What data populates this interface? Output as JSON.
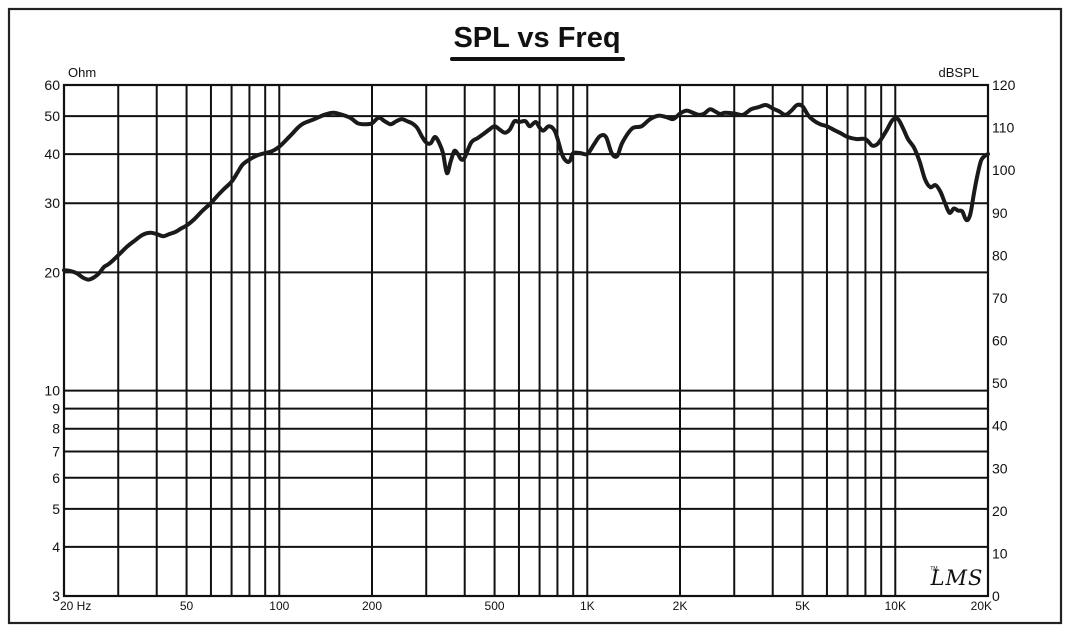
{
  "chart_data": {
    "type": "line",
    "title": "SPL vs Freq",
    "watermark": "LMS",
    "x_axis": {
      "scale": "log",
      "range": [
        20,
        20000
      ],
      "tick_labels": [
        {
          "value": 20,
          "label": "20 Hz"
        },
        {
          "value": 50,
          "label": "50"
        },
        {
          "value": 100,
          "label": "100"
        },
        {
          "value": 200,
          "label": "200"
        },
        {
          "value": 500,
          "label": "500"
        },
        {
          "value": 1000,
          "label": "1K"
        },
        {
          "value": 2000,
          "label": "2K"
        },
        {
          "value": 5000,
          "label": "5K"
        },
        {
          "value": 10000,
          "label": "10K"
        },
        {
          "value": 20000,
          "label": "20K"
        }
      ]
    },
    "y_left": {
      "label": "Ohm",
      "scale": "log",
      "range": [
        3,
        60
      ],
      "tick_labels": [
        {
          "value": 60,
          "label": "60"
        },
        {
          "value": 50,
          "label": "50"
        },
        {
          "value": 40,
          "label": "40"
        },
        {
          "value": 30,
          "label": "30"
        },
        {
          "value": 20,
          "label": "20"
        },
        {
          "value": 10,
          "label": "10"
        },
        {
          "value": 9,
          "label": "9"
        },
        {
          "value": 8,
          "label": "8"
        },
        {
          "value": 7,
          "label": "7"
        },
        {
          "value": 6,
          "label": "6"
        },
        {
          "value": 5,
          "label": "5"
        },
        {
          "value": 4,
          "label": "4"
        },
        {
          "value": 3,
          "label": "3"
        }
      ]
    },
    "y_right": {
      "label": "dBSPL",
      "scale": "linear",
      "range": [
        0,
        120
      ],
      "tick_labels": [
        {
          "value": 120,
          "label": "120"
        },
        {
          "value": 110,
          "label": "110"
        },
        {
          "value": 100,
          "label": "100"
        },
        {
          "value": 90,
          "label": "90"
        },
        {
          "value": 80,
          "label": "80"
        },
        {
          "value": 70,
          "label": "70"
        },
        {
          "value": 60,
          "label": "60"
        },
        {
          "value": 50,
          "label": "50"
        },
        {
          "value": 40,
          "label": "40"
        },
        {
          "value": 30,
          "label": "30"
        },
        {
          "value": 20,
          "label": "20"
        },
        {
          "value": 10,
          "label": "10"
        },
        {
          "value": 0,
          "label": "0"
        }
      ]
    },
    "grid": true,
    "series": [
      {
        "axis": "right",
        "color": "#1a1a1a",
        "points": [
          [
            20,
            76.5
          ],
          [
            21,
            76.3
          ],
          [
            22,
            75.8
          ],
          [
            23,
            74.8
          ],
          [
            24,
            74.3
          ],
          [
            25,
            74.8
          ],
          [
            26,
            75.8
          ],
          [
            27,
            77.3
          ],
          [
            28,
            78.0
          ],
          [
            30,
            80.0
          ],
          [
            32,
            82.0
          ],
          [
            34,
            83.5
          ],
          [
            36,
            84.8
          ],
          [
            38,
            85.3
          ],
          [
            40,
            85.0
          ],
          [
            42,
            84.5
          ],
          [
            44,
            85.0
          ],
          [
            46,
            85.5
          ],
          [
            48,
            86.3
          ],
          [
            50,
            87.0
          ],
          [
            53,
            88.5
          ],
          [
            56,
            90.3
          ],
          [
            60,
            92.3
          ],
          [
            63,
            94.0
          ],
          [
            66,
            95.5
          ],
          [
            70,
            97.3
          ],
          [
            73,
            99.3
          ],
          [
            76,
            101.3
          ],
          [
            80,
            102.5
          ],
          [
            85,
            103.5
          ],
          [
            90,
            104.0
          ],
          [
            95,
            104.5
          ],
          [
            100,
            105.5
          ],
          [
            105,
            107.0
          ],
          [
            110,
            108.5
          ],
          [
            115,
            110.0
          ],
          [
            120,
            111.0
          ],
          [
            130,
            112.0
          ],
          [
            140,
            113.0
          ],
          [
            150,
            113.5
          ],
          [
            160,
            113.0
          ],
          [
            170,
            112.3
          ],
          [
            180,
            111.0
          ],
          [
            190,
            110.8
          ],
          [
            200,
            111.0
          ],
          [
            210,
            112.3
          ],
          [
            220,
            111.5
          ],
          [
            230,
            110.8
          ],
          [
            240,
            111.5
          ],
          [
            250,
            112.0
          ],
          [
            260,
            111.5
          ],
          [
            270,
            111.0
          ],
          [
            280,
            110.0
          ],
          [
            290,
            108.0
          ],
          [
            300,
            106.5
          ],
          [
            310,
            106.3
          ],
          [
            320,
            107.8
          ],
          [
            330,
            106.5
          ],
          [
            340,
            104.0
          ],
          [
            350,
            99.3
          ],
          [
            360,
            102.0
          ],
          [
            370,
            104.5
          ],
          [
            380,
            103.8
          ],
          [
            390,
            102.5
          ],
          [
            400,
            103.0
          ],
          [
            420,
            106.5
          ],
          [
            440,
            107.5
          ],
          [
            460,
            108.5
          ],
          [
            480,
            109.5
          ],
          [
            500,
            110.3
          ],
          [
            520,
            109.5
          ],
          [
            540,
            108.8
          ],
          [
            560,
            109.5
          ],
          [
            580,
            111.5
          ],
          [
            600,
            111.3
          ],
          [
            630,
            111.5
          ],
          [
            650,
            110.3
          ],
          [
            680,
            111.3
          ],
          [
            700,
            110.0
          ],
          [
            720,
            109.3
          ],
          [
            750,
            110.3
          ],
          [
            780,
            109.5
          ],
          [
            800,
            107.5
          ],
          [
            830,
            103.5
          ],
          [
            860,
            102.0
          ],
          [
            880,
            102.3
          ],
          [
            900,
            104.0
          ],
          [
            950,
            104.0
          ],
          [
            1000,
            103.8
          ],
          [
            1050,
            106.0
          ],
          [
            1100,
            108.0
          ],
          [
            1150,
            107.8
          ],
          [
            1200,
            104.0
          ],
          [
            1250,
            103.3
          ],
          [
            1300,
            106.5
          ],
          [
            1400,
            109.8
          ],
          [
            1500,
            110.3
          ],
          [
            1600,
            112.0
          ],
          [
            1700,
            112.8
          ],
          [
            1800,
            112.5
          ],
          [
            1900,
            112.0
          ],
          [
            2000,
            113.3
          ],
          [
            2100,
            114.0
          ],
          [
            2200,
            113.5
          ],
          [
            2300,
            113.0
          ],
          [
            2400,
            113.3
          ],
          [
            2500,
            114.3
          ],
          [
            2600,
            113.8
          ],
          [
            2700,
            113.2
          ],
          [
            2800,
            113.5
          ],
          [
            3000,
            113.3
          ],
          [
            3200,
            113.0
          ],
          [
            3400,
            114.3
          ],
          [
            3600,
            114.8
          ],
          [
            3800,
            115.3
          ],
          [
            4000,
            114.5
          ],
          [
            4200,
            113.8
          ],
          [
            4400,
            113.0
          ],
          [
            4600,
            114.0
          ],
          [
            4800,
            115.3
          ],
          [
            5000,
            115.0
          ],
          [
            5200,
            113.0
          ],
          [
            5400,
            111.8
          ],
          [
            5700,
            110.8
          ],
          [
            6000,
            110.3
          ],
          [
            6300,
            109.5
          ],
          [
            6600,
            108.8
          ],
          [
            7000,
            107.8
          ],
          [
            7500,
            107.3
          ],
          [
            8000,
            107.3
          ],
          [
            8400,
            105.8
          ],
          [
            8700,
            106.0
          ],
          [
            9000,
            107.3
          ],
          [
            9400,
            109.5
          ],
          [
            9800,
            111.8
          ],
          [
            10200,
            112.0
          ],
          [
            10600,
            109.8
          ],
          [
            11000,
            107.3
          ],
          [
            11500,
            105.3
          ],
          [
            12000,
            102.0
          ],
          [
            12500,
            97.8
          ],
          [
            13000,
            96.0
          ],
          [
            13500,
            96.5
          ],
          [
            14000,
            95.0
          ],
          [
            14500,
            92.3
          ],
          [
            15000,
            90.0
          ],
          [
            15500,
            91.0
          ],
          [
            16000,
            90.5
          ],
          [
            16500,
            90.3
          ],
          [
            17000,
            88.3
          ],
          [
            17500,
            89.5
          ],
          [
            18000,
            94.5
          ],
          [
            18500,
            99.0
          ],
          [
            19000,
            102.3
          ],
          [
            19500,
            103.3
          ],
          [
            20000,
            103.8
          ]
        ]
      }
    ]
  }
}
